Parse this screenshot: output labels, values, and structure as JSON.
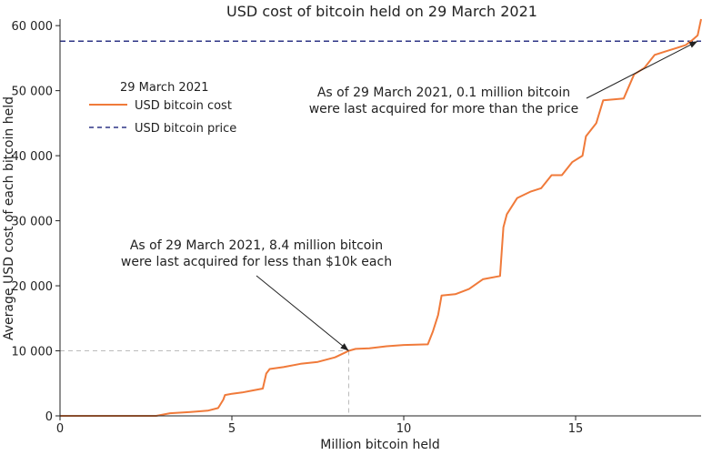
{
  "chart_data": {
    "type": "line",
    "title": "USD cost of bitcoin held on 29 March 2021",
    "xlabel": "Million bitcoin held",
    "ylabel": "Average USD cost of each bitcoin held",
    "xlim": [
      0,
      18.65
    ],
    "ylim": [
      0,
      61000
    ],
    "x_ticks": [
      0,
      5,
      10,
      15
    ],
    "x_tick_labels": [
      "0",
      "5",
      "10",
      "15"
    ],
    "y_ticks": [
      0,
      10000,
      20000,
      30000,
      40000,
      50000,
      60000
    ],
    "y_tick_labels": [
      "0",
      "10 000",
      "20 000",
      "30 000",
      "40 000",
      "50 000",
      "60 000"
    ],
    "grid": false,
    "legend": {
      "placement": "top-left",
      "title": "29 March 2021",
      "entries": [
        "USD bitcoin cost",
        "USD bitcoin price"
      ]
    },
    "series": [
      {
        "name": "USD bitcoin cost",
        "color": "#f07a3a",
        "style": "solid",
        "x": [
          0,
          2.8,
          3.2,
          3.8,
          4.3,
          4.6,
          4.75,
          4.8,
          5.0,
          5.3,
          5.6,
          5.9,
          6.0,
          6.1,
          6.5,
          7.0,
          7.5,
          8.0,
          8.4,
          8.6,
          9.0,
          9.5,
          10.0,
          10.7,
          10.85,
          11.0,
          11.1,
          11.5,
          11.9,
          12.3,
          12.8,
          12.9,
          13.0,
          13.3,
          13.5,
          13.7,
          14.0,
          14.3,
          14.6,
          14.9,
          15.2,
          15.3,
          15.6,
          15.8,
          16.4,
          16.7,
          17.0,
          17.3,
          17.6,
          17.9,
          18.2,
          18.4,
          18.55,
          18.65
        ],
        "y": [
          0,
          0,
          400,
          600,
          800,
          1200,
          2500,
          3200,
          3400,
          3600,
          3900,
          4200,
          6500,
          7200,
          7500,
          8000,
          8300,
          9000,
          10000,
          10300,
          10400,
          10700,
          10900,
          11000,
          13000,
          15500,
          18500,
          18700,
          19500,
          21000,
          21500,
          29000,
          31000,
          33500,
          34000,
          34500,
          35000,
          37000,
          37000,
          39000,
          40000,
          43000,
          45000,
          48500,
          48800,
          52500,
          53500,
          55500,
          56000,
          56500,
          57000,
          57800,
          58500,
          61000
        ]
      },
      {
        "name": "USD bitcoin price",
        "color": "#2e3586",
        "style": "dashed",
        "y_constant": 57600
      }
    ],
    "reference_lines": [
      {
        "x": 8.4,
        "y": 10000,
        "style": "dashed",
        "color": "#bbbbbb"
      }
    ],
    "annotations": [
      {
        "lines": [
          "As of 29 March 2021, 8.4 million bitcoin",
          "were last acquired for less than $10k each"
        ],
        "arrow_to": {
          "x": 8.4,
          "y": 10000
        }
      },
      {
        "lines": [
          "As of 29 March 2021, 0.1 million bitcoin",
          "were last acquired for more than the price"
        ],
        "arrow_to": {
          "x": 18.55,
          "y": 57600
        }
      }
    ]
  }
}
